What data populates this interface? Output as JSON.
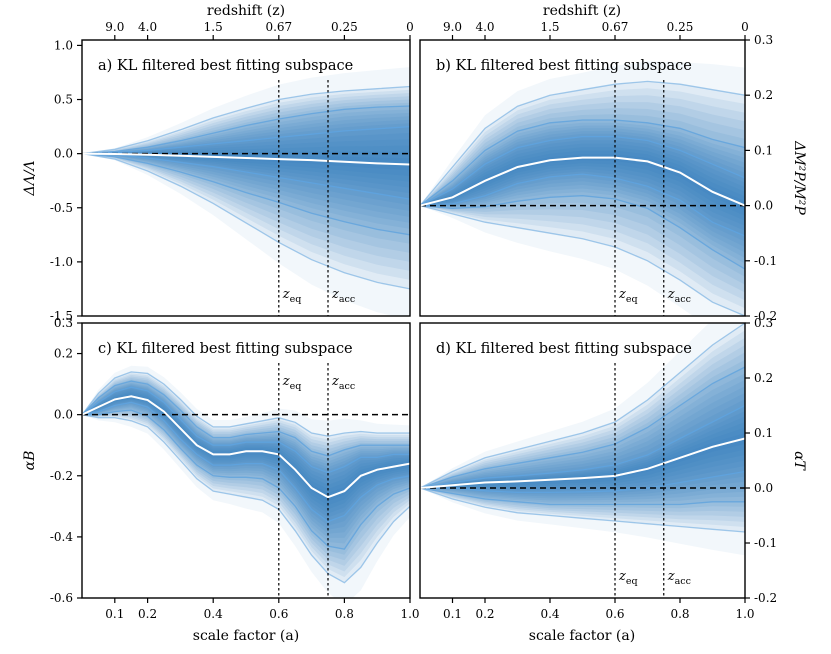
{
  "chart_data": {
    "type": "area",
    "figure": {
      "bottom_xlabel": "scale factor (a)",
      "top_xlabel": "redshift (z)",
      "x_ticks": [
        "0.1",
        "0.2",
        "0.4",
        "0.6",
        "0.8",
        "1.0"
      ],
      "x_tick_values": [
        0.1,
        0.2,
        0.4,
        0.6,
        0.8,
        1.0
      ],
      "top_ticks": [
        "9.0",
        "4.0",
        "1.5",
        "0.67",
        "0.25",
        "0"
      ],
      "top_tick_values": [
        0.1,
        0.2,
        0.4,
        0.6,
        0.8,
        1.0
      ],
      "xlim": [
        0.0,
        1.0
      ],
      "colors": {
        "band": "#1f77b4",
        "contour": "#5fa2dd",
        "median": "#ffffff",
        "reference": "#000000"
      }
    },
    "panels": [
      {
        "id": "a",
        "title": "a) KL filtered best fitting subspace",
        "ylabel": "ΔΛ/Λ",
        "ylabel_side": "left",
        "ylim": [
          -1.5,
          1.05
        ],
        "yticks": [
          -1.5,
          -1.0,
          -0.5,
          0.0,
          0.5,
          1.0
        ],
        "ytick_labels": [
          "-1.5",
          "-1.0",
          "-0.5",
          "0.0",
          "0.5",
          "1.0"
        ],
        "markers": [
          {
            "x": 0.6,
            "label": "z",
            "sub": "eq"
          },
          {
            "x": 0.75,
            "label": "z",
            "sub": "acc"
          }
        ],
        "marker_label_position": "bottom",
        "reference_y": 0.0,
        "x": [
          0.0,
          0.1,
          0.2,
          0.3,
          0.4,
          0.5,
          0.6,
          0.7,
          0.8,
          0.9,
          1.0
        ],
        "median": [
          0.0,
          -0.003,
          -0.01,
          -0.02,
          -0.03,
          -0.04,
          -0.05,
          -0.06,
          -0.075,
          -0.09,
          -0.1
        ],
        "upper_1sigma": [
          0.0,
          0.01,
          0.03,
          0.06,
          0.09,
          0.12,
          0.15,
          0.18,
          0.21,
          0.23,
          0.25
        ],
        "lower_1sigma": [
          0.0,
          -0.01,
          -0.04,
          -0.08,
          -0.12,
          -0.17,
          -0.22,
          -0.27,
          -0.32,
          -0.37,
          -0.42
        ],
        "upper_2sigma": [
          0.0,
          0.02,
          0.06,
          0.12,
          0.19,
          0.26,
          0.32,
          0.37,
          0.41,
          0.43,
          0.44
        ],
        "lower_2sigma": [
          0.0,
          -0.03,
          -0.09,
          -0.17,
          -0.26,
          -0.36,
          -0.45,
          -0.55,
          -0.63,
          -0.7,
          -0.75
        ],
        "upper_3sigma": [
          0.0,
          0.04,
          0.12,
          0.22,
          0.33,
          0.42,
          0.5,
          0.55,
          0.58,
          0.6,
          0.62
        ],
        "lower_3sigma": [
          0.0,
          -0.05,
          -0.16,
          -0.3,
          -0.46,
          -0.64,
          -0.82,
          -0.98,
          -1.1,
          -1.19,
          -1.25
        ]
      },
      {
        "id": "b",
        "title": "b) KL filtered best fitting subspace",
        "ylabel": "ΔM²P/M²P",
        "ylabel_side": "right",
        "ylim": [
          -0.2,
          0.3
        ],
        "yticks": [
          -0.2,
          -0.1,
          0.0,
          0.1,
          0.2,
          0.3
        ],
        "ytick_labels": [
          "-0.2",
          "-0.1",
          "0.0",
          "0.1",
          "0.2",
          "0.3"
        ],
        "markers": [
          {
            "x": 0.6,
            "label": "z",
            "sub": "eq"
          },
          {
            "x": 0.75,
            "label": "z",
            "sub": "acc"
          }
        ],
        "marker_label_position": "bottom",
        "reference_y": 0.0,
        "x": [
          0.0,
          0.1,
          0.2,
          0.3,
          0.4,
          0.5,
          0.6,
          0.7,
          0.8,
          0.9,
          1.0
        ],
        "median": [
          0.0,
          0.015,
          0.045,
          0.07,
          0.082,
          0.087,
          0.087,
          0.08,
          0.06,
          0.025,
          0.0
        ],
        "upper_1sigma": [
          0.0,
          0.03,
          0.075,
          0.105,
          0.118,
          0.125,
          0.125,
          0.118,
          0.1,
          0.075,
          0.05
        ],
        "lower_1sigma": [
          0.0,
          0.003,
          0.018,
          0.04,
          0.052,
          0.057,
          0.05,
          0.035,
          0.01,
          -0.03,
          -0.055
        ],
        "upper_2sigma": [
          0.0,
          0.045,
          0.1,
          0.135,
          0.15,
          0.155,
          0.155,
          0.15,
          0.14,
          0.12,
          0.105
        ],
        "lower_2sigma": [
          0.0,
          -0.005,
          -0.002,
          0.008,
          0.015,
          0.018,
          0.012,
          -0.005,
          -0.04,
          -0.08,
          -0.115
        ],
        "upper_3sigma": [
          0.0,
          0.07,
          0.14,
          0.18,
          0.2,
          0.21,
          0.22,
          0.225,
          0.22,
          0.21,
          0.2
        ],
        "lower_3sigma": [
          0.0,
          -0.015,
          -0.03,
          -0.04,
          -0.05,
          -0.06,
          -0.075,
          -0.1,
          -0.135,
          -0.175,
          -0.2
        ]
      },
      {
        "id": "c",
        "title": "c) KL filtered best fitting subspace",
        "ylabel": "αB",
        "ylabel_side": "left",
        "ylim": [
          -0.6,
          0.3
        ],
        "yticks": [
          -0.6,
          -0.4,
          -0.2,
          0.0,
          0.2,
          0.3
        ],
        "ytick_labels": [
          "-0.6",
          "-0.4",
          "-0.2",
          "0.0",
          "0.2",
          "0.3"
        ],
        "markers": [
          {
            "x": 0.6,
            "label": "z",
            "sub": "eq"
          },
          {
            "x": 0.75,
            "label": "z",
            "sub": "acc"
          }
        ],
        "marker_label_position": "top",
        "reference_y": 0.0,
        "x": [
          0.0,
          0.05,
          0.1,
          0.15,
          0.2,
          0.25,
          0.3,
          0.35,
          0.4,
          0.45,
          0.5,
          0.55,
          0.6,
          0.65,
          0.7,
          0.75,
          0.8,
          0.85,
          0.9,
          0.95,
          1.0
        ],
        "median": [
          0.0,
          0.025,
          0.05,
          0.06,
          0.048,
          0.01,
          -0.045,
          -0.1,
          -0.13,
          -0.13,
          -0.12,
          -0.12,
          -0.13,
          -0.18,
          -0.24,
          -0.27,
          -0.25,
          -0.2,
          -0.18,
          -0.17,
          -0.16
        ],
        "upper_1sigma": [
          0.0,
          0.04,
          0.075,
          0.09,
          0.078,
          0.04,
          -0.015,
          -0.07,
          -0.1,
          -0.1,
          -0.09,
          -0.09,
          -0.09,
          -0.12,
          -0.17,
          -0.19,
          -0.17,
          -0.14,
          -0.14,
          -0.13,
          -0.13
        ],
        "lower_1sigma": [
          0.0,
          0.01,
          0.03,
          0.04,
          0.025,
          -0.02,
          -0.08,
          -0.13,
          -0.165,
          -0.165,
          -0.16,
          -0.16,
          -0.18,
          -0.24,
          -0.31,
          -0.35,
          -0.33,
          -0.27,
          -0.23,
          -0.21,
          -0.2
        ],
        "upper_2sigma": [
          0.0,
          0.055,
          0.095,
          0.11,
          0.1,
          0.065,
          0.015,
          -0.04,
          -0.075,
          -0.075,
          -0.065,
          -0.06,
          -0.055,
          -0.075,
          -0.12,
          -0.135,
          -0.115,
          -0.1,
          -0.1,
          -0.1,
          -0.1
        ],
        "lower_2sigma": [
          0.0,
          0.0,
          0.01,
          0.015,
          -0.005,
          -0.05,
          -0.11,
          -0.165,
          -0.2,
          -0.205,
          -0.205,
          -0.21,
          -0.24,
          -0.3,
          -0.38,
          -0.43,
          -0.44,
          -0.36,
          -0.3,
          -0.26,
          -0.24
        ],
        "upper_3sigma": [
          0.0,
          0.07,
          0.12,
          0.14,
          0.135,
          0.1,
          0.05,
          -0.005,
          -0.04,
          -0.04,
          -0.03,
          -0.02,
          -0.01,
          -0.025,
          -0.06,
          -0.07,
          -0.06,
          -0.055,
          -0.06,
          -0.06,
          -0.06
        ],
        "lower_3sigma": [
          0.0,
          -0.01,
          -0.01,
          -0.02,
          -0.04,
          -0.09,
          -0.15,
          -0.21,
          -0.25,
          -0.26,
          -0.27,
          -0.28,
          -0.31,
          -0.38,
          -0.46,
          -0.52,
          -0.55,
          -0.5,
          -0.42,
          -0.35,
          -0.3
        ]
      },
      {
        "id": "d",
        "title": "d) KL filtered best fitting subspace",
        "ylabel": "αT",
        "ylabel_side": "right",
        "ylim": [
          -0.2,
          0.3
        ],
        "yticks": [
          -0.2,
          -0.1,
          0.0,
          0.1,
          0.2,
          0.3
        ],
        "ytick_labels": [
          "-0.2",
          "-0.1",
          "0.0",
          "0.1",
          "0.2",
          "0.3"
        ],
        "markers": [
          {
            "x": 0.6,
            "label": "z",
            "sub": "eq"
          },
          {
            "x": 0.75,
            "label": "z",
            "sub": "acc"
          }
        ],
        "marker_label_position": "bottom",
        "reference_y": 0.0,
        "x": [
          0.0,
          0.1,
          0.2,
          0.3,
          0.4,
          0.5,
          0.6,
          0.7,
          0.8,
          0.9,
          1.0
        ],
        "median": [
          0.0,
          0.005,
          0.01,
          0.012,
          0.015,
          0.018,
          0.022,
          0.035,
          0.055,
          0.075,
          0.09
        ],
        "upper_1sigma": [
          0.0,
          0.01,
          0.018,
          0.022,
          0.027,
          0.033,
          0.042,
          0.06,
          0.09,
          0.12,
          0.15
        ],
        "lower_1sigma": [
          0.0,
          0.0,
          -0.005,
          -0.008,
          -0.008,
          -0.007,
          -0.005,
          0.0,
          0.01,
          0.02,
          0.03
        ],
        "upper_2sigma": [
          0.0,
          0.02,
          0.035,
          0.045,
          0.055,
          0.065,
          0.08,
          0.11,
          0.15,
          0.19,
          0.22
        ],
        "lower_2sigma": [
          0.0,
          -0.01,
          -0.02,
          -0.025,
          -0.03,
          -0.03,
          -0.03,
          -0.03,
          -0.03,
          -0.025,
          -0.025
        ],
        "upper_3sigma": [
          0.0,
          0.03,
          0.055,
          0.07,
          0.085,
          0.1,
          0.12,
          0.16,
          0.21,
          0.26,
          0.3
        ],
        "lower_3sigma": [
          0.0,
          -0.02,
          -0.035,
          -0.045,
          -0.05,
          -0.055,
          -0.06,
          -0.065,
          -0.07,
          -0.075,
          -0.08
        ]
      }
    ]
  }
}
